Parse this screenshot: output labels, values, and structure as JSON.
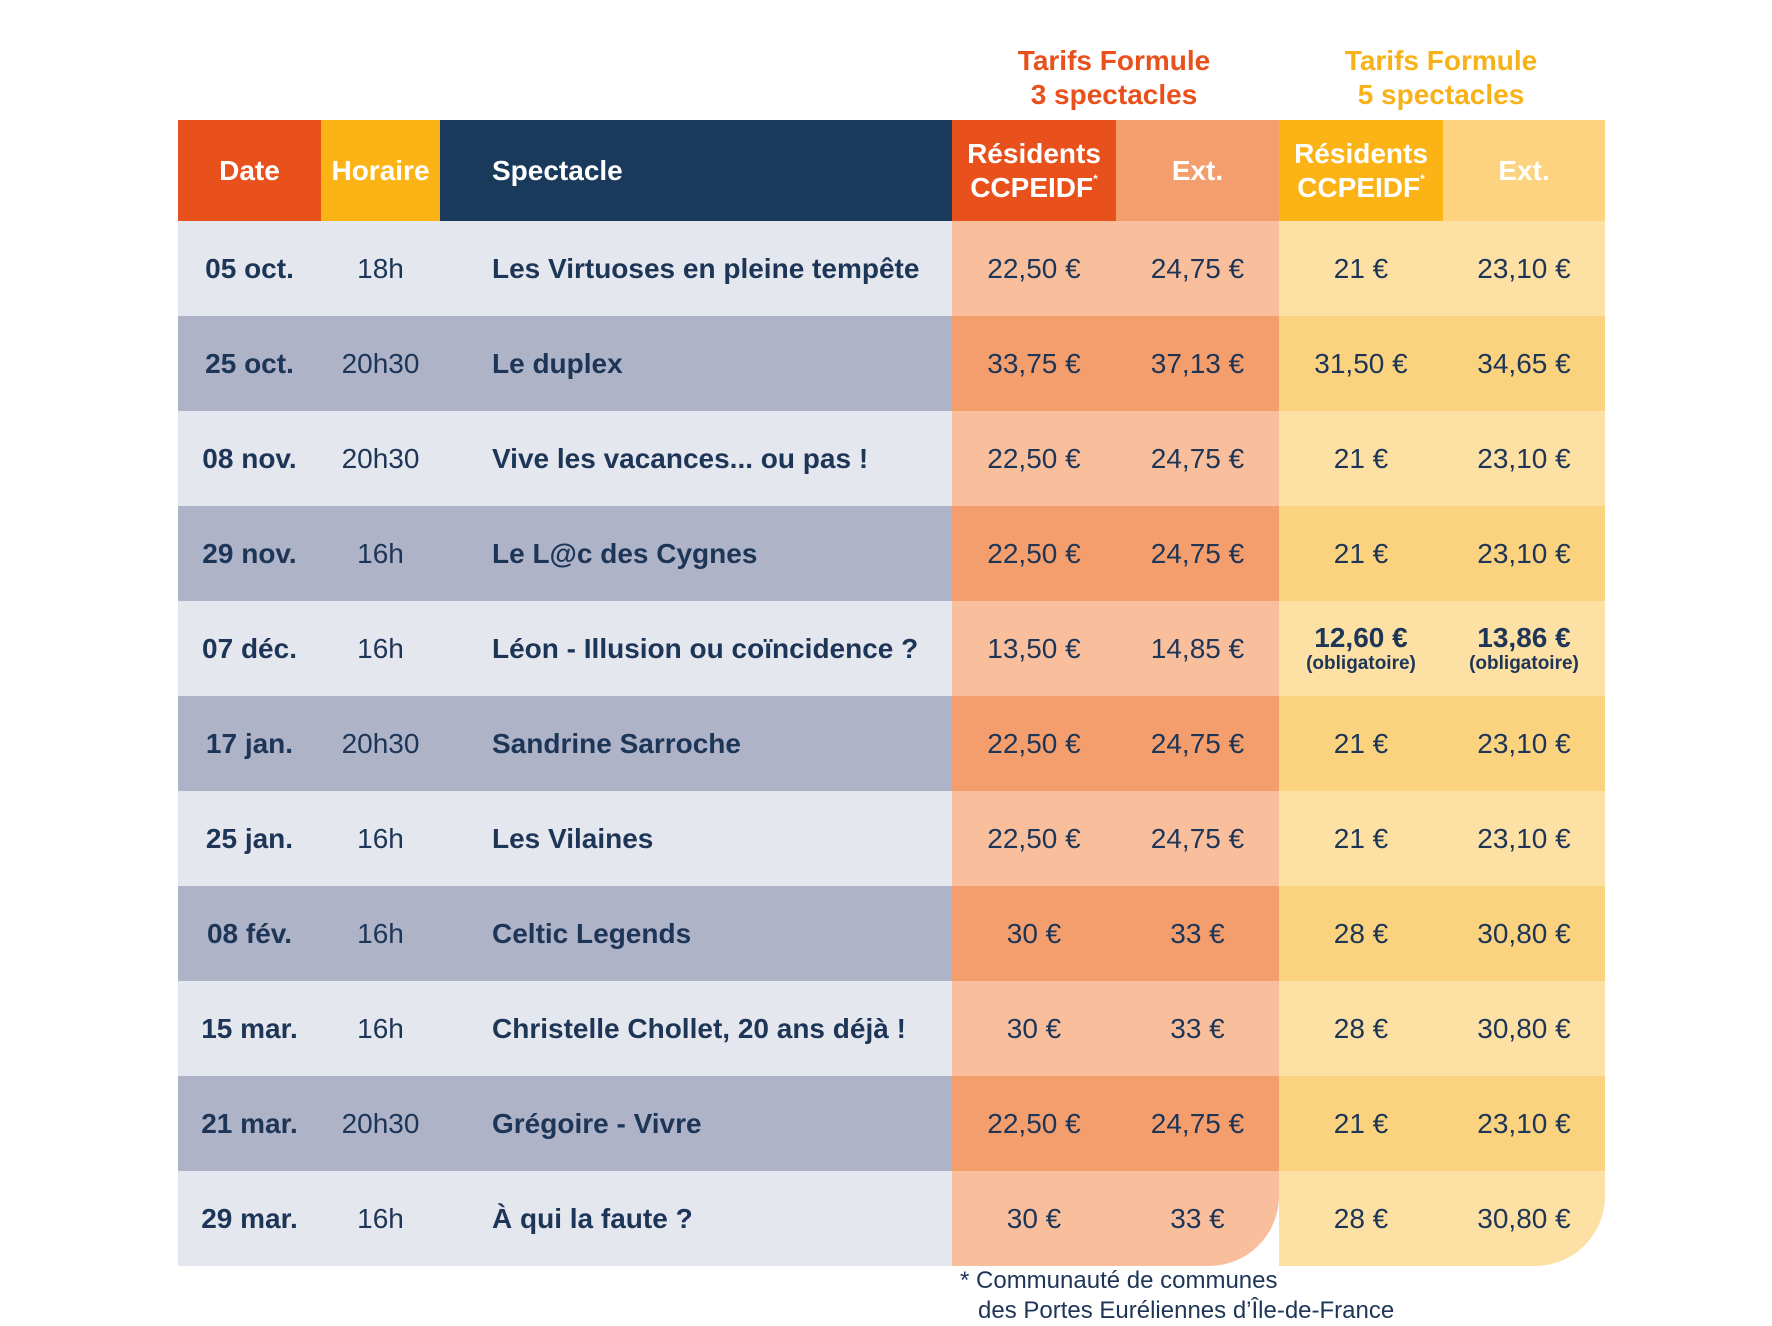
{
  "groups": {
    "formule3": {
      "line1": "Tarifs Formule",
      "line2": "3 spectacles"
    },
    "formule5": {
      "line1": "Tarifs Formule",
      "line2": "5 spectacles"
    }
  },
  "headers": {
    "date": "Date",
    "horaire": "Horaire",
    "spectacle": "Spectacle",
    "residents_line1": "Résidents",
    "residents_line2": "CCPEIDF",
    "residents_mark": "*",
    "ext": "Ext."
  },
  "rows": [
    {
      "date": "05 oct.",
      "hour": "18h",
      "show": "Les Virtuoses en pleine tempête",
      "r3": "22,50 €",
      "e3": "24,75 €",
      "r5": "21 €",
      "e5": "23,10 €"
    },
    {
      "date": "25 oct.",
      "hour": "20h30",
      "show": "Le duplex",
      "r3": "33,75 €",
      "e3": "37,13 €",
      "r5": "31,50 €",
      "e5": "34,65 €"
    },
    {
      "date": "08 nov.",
      "hour": "20h30",
      "show": "Vive les vacances... ou pas !",
      "r3": "22,50 €",
      "e3": "24,75 €",
      "r5": "21 €",
      "e5": "23,10 €"
    },
    {
      "date": "29 nov.",
      "hour": "16h",
      "show": "Le L@c des Cygnes",
      "r3": "22,50 €",
      "e3": "24,75 €",
      "r5": "21 €",
      "e5": "23,10 €"
    },
    {
      "date": "07 déc.",
      "hour": "16h",
      "show": "Léon - Illusion ou coïncidence ?",
      "r3": "13,50 €",
      "e3": "14,85 €",
      "r5": "12,60 €",
      "e5": "13,86 €",
      "r5_note": "(obligatoire)",
      "e5_note": "(obligatoire)"
    },
    {
      "date": "17 jan.",
      "hour": "20h30",
      "show": "Sandrine Sarroche",
      "r3": "22,50 €",
      "e3": "24,75 €",
      "r5": "21 €",
      "e5": "23,10 €"
    },
    {
      "date": "25 jan.",
      "hour": "16h",
      "show": "Les Vilaines",
      "r3": "22,50 €",
      "e3": "24,75 €",
      "r5": "21 €",
      "e5": "23,10 €"
    },
    {
      "date": "08 fév.",
      "hour": "16h",
      "show": "Celtic Legends",
      "r3": "30 €",
      "e3": "33 €",
      "r5": "28 €",
      "e5": "30,80 €"
    },
    {
      "date": "15 mar.",
      "hour": "16h",
      "show": "Christelle Chollet, 20 ans déjà !",
      "r3": "30 €",
      "e3": "33 €",
      "r5": "28 €",
      "e5": "30,80 €"
    },
    {
      "date": "21 mar.",
      "hour": "20h30",
      "show": "Grégoire - Vivre",
      "r3": "22,50 €",
      "e3": "24,75 €",
      "r5": "21 €",
      "e5": "23,10 €"
    },
    {
      "date": "29 mar.",
      "hour": "16h",
      "show": "À qui la faute ?",
      "r3": "30 €",
      "e3": "33 €",
      "r5": "28 €",
      "e5": "30,80 €"
    }
  ],
  "footnote": {
    "line1": "* Communauté de communes",
    "line2": "des Portes Euréliennes d’Île-de-France"
  }
}
